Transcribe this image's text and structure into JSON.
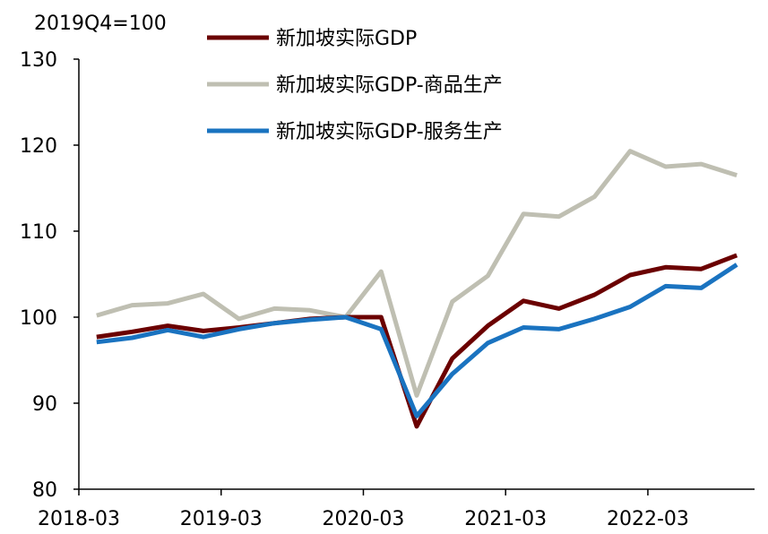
{
  "chart_data": {
    "type": "line",
    "title": "",
    "unit_label": "2019Q4=100",
    "xlabel": "",
    "ylabel": "",
    "ylim": [
      80,
      130
    ],
    "yticks": [
      80,
      90,
      100,
      110,
      120,
      130
    ],
    "x": [
      "2018-03",
      "2018-06",
      "2018-09",
      "2018-12",
      "2019-03",
      "2019-06",
      "2019-09",
      "2019-12",
      "2020-03",
      "2020-06",
      "2020-09",
      "2020-12",
      "2021-03",
      "2021-06",
      "2021-09",
      "2021-12",
      "2022-03",
      "2022-06",
      "2022-09"
    ],
    "xtick_labels": [
      "2018-03",
      "2019-03",
      "2020-03",
      "2021-03",
      "2022-03"
    ],
    "xtick_indices": [
      0,
      4,
      8,
      12,
      16
    ],
    "legend_position": "top-right",
    "series": [
      {
        "name": "新加坡实际GDP",
        "color": "#6b0000",
        "values": [
          97.7,
          98.3,
          99.0,
          98.4,
          98.8,
          99.3,
          99.8,
          100.0,
          100.0,
          87.3,
          95.2,
          99.0,
          101.9,
          101.0,
          102.6,
          104.9,
          105.8,
          105.6,
          107.2
        ]
      },
      {
        "name": "新加坡实际GDP-商品生产",
        "color": "#bfbfb2",
        "values": [
          100.2,
          101.4,
          101.6,
          102.7,
          99.8,
          101.0,
          100.8,
          100.0,
          105.3,
          90.9,
          101.8,
          104.8,
          112.0,
          111.7,
          114.0,
          119.3,
          117.5,
          117.8,
          116.5
        ]
      },
      {
        "name": "新加坡实际GDP-服务生产",
        "color": "#1a73c0",
        "values": [
          97.1,
          97.6,
          98.5,
          97.7,
          98.6,
          99.3,
          99.7,
          100.0,
          98.6,
          88.5,
          93.4,
          97.0,
          98.8,
          98.6,
          99.8,
          101.2,
          103.6,
          103.4,
          106.1
        ]
      }
    ]
  }
}
